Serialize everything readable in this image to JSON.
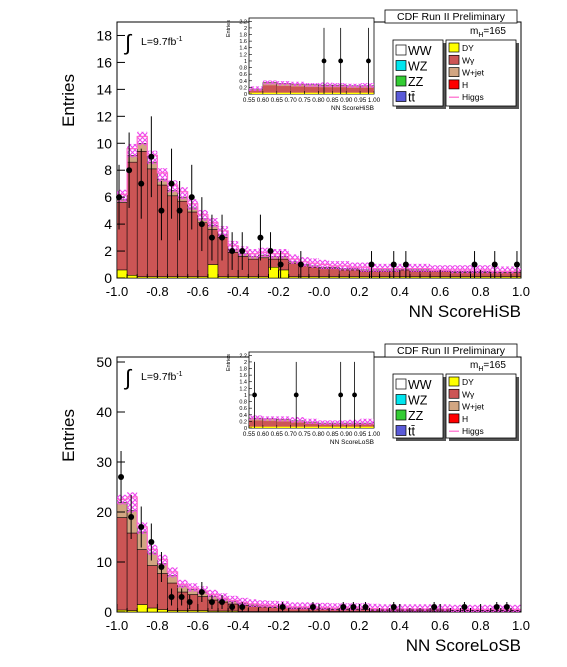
{
  "chart_data": [
    {
      "type": "bar",
      "header": "CDF Run II Preliminary",
      "mass_label": "m",
      "mass_sub": "H",
      "mass_value": "=165",
      "lumi_text": "L=9.7fb",
      "lumi_sup": "-1",
      "xlabel": "NN ScoreHiSB",
      "ylabel": "Entries",
      "xlim": [
        -1.0,
        1.0
      ],
      "ylim": [
        0,
        19
      ],
      "x_ticks": [
        "-1.0",
        "-0.8",
        "-0.6",
        "-0.4",
        "-0.2",
        "-0.0",
        "0.2",
        "0.4",
        "0.6",
        "0.8",
        "1.0"
      ],
      "y_ticks": [
        "0",
        "2",
        "4",
        "6",
        "8",
        "10",
        "12",
        "14",
        "16",
        "18"
      ],
      "bin_edges": [
        -1.0,
        -0.95,
        -0.9,
        -0.85,
        -0.8,
        -0.75,
        -0.7,
        -0.65,
        -0.6,
        -0.55,
        -0.5,
        -0.45,
        -0.4,
        -0.35,
        -0.3,
        -0.25,
        -0.2,
        -0.15,
        -0.1,
        -0.05,
        0.0,
        0.05,
        0.1,
        0.15,
        0.2,
        0.25,
        0.3,
        0.35,
        0.4,
        0.45,
        0.5,
        0.55,
        0.6,
        0.65,
        0.7,
        0.75,
        0.8,
        0.85,
        0.9,
        0.95,
        1.0
      ],
      "series": [
        {
          "name": "DY",
          "color": "#ffff00",
          "values": [
            0.6,
            0.2,
            0.1,
            0.1,
            0.1,
            0.1,
            0.1,
            0.1,
            0.1,
            1.0,
            0.1,
            0.1,
            0.1,
            0.1,
            0.1,
            0.8,
            0.6,
            0.1,
            0.1,
            0.1,
            0.1,
            0.1,
            0.1,
            0.1,
            0.1,
            0.1,
            0.1,
            0.1,
            0.1,
            0.1,
            0.1,
            0.1,
            0.1,
            0.1,
            0.1,
            0.1,
            0.1,
            0.1,
            0.1,
            0.1
          ]
        },
        {
          "name": "Wγ",
          "color": "#cc5555",
          "values": [
            5.0,
            8.4,
            9.3,
            8.0,
            6.8,
            6.0,
            5.6,
            4.8,
            4.0,
            2.6,
            2.9,
            1.8,
            1.5,
            1.3,
            1.4,
            0.6,
            0.8,
            1.0,
            0.8,
            0.7,
            0.6,
            0.6,
            0.5,
            0.5,
            0.4,
            0.4,
            0.4,
            0.4,
            0.5,
            0.4,
            0.4,
            0.4,
            0.4,
            0.3,
            0.3,
            0.3,
            0.3,
            0.3,
            0.3,
            0.3
          ]
        },
        {
          "name": "W+jet",
          "color": "#d2a682",
          "values": [
            0.2,
            0.5,
            0.6,
            0.5,
            0.4,
            0.4,
            0.3,
            0.3,
            0.3,
            0.3,
            0.2,
            0.2,
            0.2,
            0.2,
            0.2,
            0.2,
            0.2,
            0.1,
            0.1,
            0.1,
            0.1,
            0.1,
            0.1,
            0.1,
            0.1,
            0.1,
            0.1,
            0.1,
            0.1,
            0.1,
            0.1,
            0.1,
            0.1,
            0.1,
            0.1,
            0.1,
            0.1,
            0.1,
            0.1,
            0.1
          ]
        }
      ],
      "higgs": [
        6.2,
        9.6,
        10.5,
        9.1,
        7.8,
        6.9,
        6.4,
        5.5,
        4.7,
        4.1,
        3.5,
        2.4,
        2.0,
        1.8,
        1.9,
        1.8,
        1.8,
        1.4,
        1.2,
        1.1,
        1.0,
        0.9,
        0.9,
        0.8,
        0.8,
        0.7,
        0.7,
        0.7,
        0.7,
        0.7,
        0.7,
        0.6,
        0.6,
        0.6,
        0.6,
        0.6,
        0.6,
        0.5,
        0.5,
        0.5
      ],
      "data_points": [
        {
          "x": -0.99,
          "y": 6,
          "err": 2.4
        },
        {
          "x": -0.94,
          "y": 8,
          "err": 2.8
        },
        {
          "x": -0.88,
          "y": 7,
          "err": 2.6
        },
        {
          "x": -0.83,
          "y": 9,
          "err": 3.0
        },
        {
          "x": -0.78,
          "y": 5,
          "err": 2.2
        },
        {
          "x": -0.73,
          "y": 7,
          "err": 2.6
        },
        {
          "x": -0.69,
          "y": 5,
          "err": 2.2
        },
        {
          "x": -0.63,
          "y": 6,
          "err": 2.4
        },
        {
          "x": -0.58,
          "y": 4,
          "err": 2.0
        },
        {
          "x": -0.53,
          "y": 3,
          "err": 1.7
        },
        {
          "x": -0.48,
          "y": 3,
          "err": 1.7
        },
        {
          "x": -0.43,
          "y": 2,
          "err": 1.4
        },
        {
          "x": -0.38,
          "y": 2,
          "err": 1.4
        },
        {
          "x": -0.29,
          "y": 3,
          "err": 1.7
        },
        {
          "x": -0.24,
          "y": 2,
          "err": 1.4
        },
        {
          "x": -0.19,
          "y": 1,
          "err": 1.0
        },
        {
          "x": -0.09,
          "y": 1,
          "err": 1.0
        },
        {
          "x": 0.26,
          "y": 1,
          "err": 1.0
        },
        {
          "x": 0.37,
          "y": 1,
          "err": 1.0
        },
        {
          "x": 0.43,
          "y": 1,
          "err": 1.0
        },
        {
          "x": 0.77,
          "y": 1,
          "err": 1.0
        },
        {
          "x": 0.87,
          "y": 1,
          "err": 1.0
        },
        {
          "x": 0.98,
          "y": 1,
          "err": 1.0
        }
      ],
      "inset": {
        "xlabel": "NN ScoreHiSB",
        "ylabel": "Entries",
        "xlim": [
          0.55,
          1.0
        ],
        "ylim": [
          0,
          2.3
        ],
        "x_ticks": [
          "0.55",
          "0.60",
          "0.65",
          "0.70",
          "0.75",
          "0.80",
          "0.85",
          "0.90",
          "0.95",
          "1.00"
        ],
        "y_ticks": [
          "0",
          "0.2",
          "0.4",
          "0.6",
          "0.8",
          "1",
          "1.2",
          "1.4",
          "1.6",
          "1.8",
          "2",
          "2.2"
        ],
        "bin_edges": [
          0.55,
          0.6,
          0.65,
          0.7,
          0.75,
          0.8,
          0.85,
          0.9,
          0.95,
          1.0
        ],
        "stack": [
          0.15,
          0.35,
          0.32,
          0.3,
          0.28,
          0.27,
          0.27,
          0.25,
          0.25
        ],
        "higgs": [
          0.2,
          0.38,
          0.36,
          0.34,
          0.3,
          0.32,
          0.3,
          0.28,
          0.3
        ],
        "data_points": [
          {
            "x": 0.82,
            "y": 1,
            "err": 1.0
          },
          {
            "x": 0.88,
            "y": 1,
            "err": 1.0
          },
          {
            "x": 0.98,
            "y": 1,
            "err": 1.0
          }
        ]
      },
      "legend": [
        {
          "label": "WW",
          "color": "#ffffff",
          "col": 0
        },
        {
          "label": "WZ",
          "color": "#00e5ee",
          "col": 0
        },
        {
          "label": "ZZ",
          "color": "#33cc33",
          "col": 0
        },
        {
          "label": "tt̄",
          "color": "#5a5ad8",
          "col": 0
        },
        {
          "label": "DY",
          "color": "#ffff00",
          "col": 1
        },
        {
          "label": "Wγ",
          "color": "#cc5555",
          "col": 1
        },
        {
          "label": "W+jet",
          "color": "#d2a682",
          "col": 1
        },
        {
          "label": "H",
          "color": "#ff0000",
          "col": 1
        },
        {
          "label": "Higgs",
          "color": "#ff66cc",
          "col": 1,
          "line": true
        }
      ]
    },
    {
      "type": "bar",
      "header": "CDF Run II Preliminary",
      "mass_label": "m",
      "mass_sub": "H",
      "mass_value": "=165",
      "lumi_text": "L=9.7fb",
      "lumi_sup": "-1",
      "xlabel": "NN ScoreLoSB",
      "ylabel": "Entries",
      "xlim": [
        -1.0,
        1.0
      ],
      "ylim": [
        0,
        51
      ],
      "x_ticks": [
        "-1.0",
        "-0.8",
        "-0.6",
        "-0.4",
        "-0.2",
        "-0.0",
        "0.2",
        "0.4",
        "0.6",
        "0.8",
        "1.0"
      ],
      "y_ticks": [
        "0",
        "10",
        "20",
        "30",
        "40",
        "50"
      ],
      "bin_edges": [
        -1.0,
        -0.95,
        -0.9,
        -0.85,
        -0.8,
        -0.75,
        -0.7,
        -0.65,
        -0.6,
        -0.55,
        -0.5,
        -0.45,
        -0.4,
        -0.35,
        -0.3,
        -0.25,
        -0.2,
        -0.15,
        -0.1,
        -0.05,
        0.0,
        0.05,
        0.1,
        0.15,
        0.2,
        0.25,
        0.3,
        0.35,
        0.4,
        0.45,
        0.5,
        0.55,
        0.6,
        0.65,
        0.7,
        0.75,
        0.8,
        0.85,
        0.9,
        0.95,
        1.0
      ],
      "series": [
        {
          "name": "DY",
          "color": "#ffff00",
          "values": [
            0.4,
            0.3,
            1.5,
            0.8,
            0.5,
            0.3,
            0.3,
            0.3,
            0.3,
            0.2,
            0.2,
            0.2,
            0.1,
            0.1,
            0.1,
            0.1,
            0.1,
            0.1,
            0.1,
            0.1,
            0.1,
            0.1,
            0.1,
            0.1,
            0.1,
            0.1,
            0.1,
            0.1,
            0.1,
            0.1,
            0.1,
            0.1,
            0.1,
            0.1,
            0.1,
            0.1,
            0.1,
            0.1,
            0.1,
            0.1
          ]
        },
        {
          "name": "Wγ",
          "color": "#cc5555",
          "values": [
            18.5,
            15.5,
            11.0,
            8.5,
            7.2,
            5.5,
            3.7,
            3.2,
            2.8,
            2.2,
            1.8,
            1.4,
            1.2,
            1.0,
            0.9,
            0.8,
            0.7,
            0.6,
            0.6,
            0.5,
            0.5,
            0.4,
            0.4,
            0.4,
            0.4,
            0.3,
            0.3,
            0.3,
            0.3,
            0.3,
            0.3,
            0.3,
            0.3,
            0.2,
            0.2,
            0.2,
            0.2,
            0.2,
            0.2,
            0.2
          ]
        },
        {
          "name": "W+jet",
          "color": "#d2a682",
          "values": [
            3.0,
            4.5,
            3.5,
            2.5,
            2.0,
            1.5,
            1.2,
            1.0,
            0.9,
            0.7,
            0.6,
            0.5,
            0.4,
            0.3,
            0.3,
            0.3,
            0.3,
            0.2,
            0.2,
            0.2,
            0.2,
            0.2,
            0.2,
            0.2,
            0.2,
            0.2,
            0.1,
            0.1,
            0.1,
            0.1,
            0.1,
            0.1,
            0.1,
            0.1,
            0.1,
            0.1,
            0.1,
            0.1,
            0.1,
            0.1
          ]
        }
      ],
      "higgs": [
        22.5,
        23.0,
        17.0,
        12.5,
        10.5,
        8.0,
        5.5,
        4.8,
        4.2,
        3.5,
        2.8,
        2.3,
        1.9,
        1.6,
        1.4,
        1.3,
        1.2,
        1.0,
        1.0,
        0.9,
        0.9,
        0.8,
        0.8,
        0.8,
        0.8,
        0.7,
        0.6,
        0.6,
        0.6,
        0.6,
        0.6,
        0.6,
        0.6,
        0.5,
        0.5,
        0.5,
        0.5,
        0.5,
        0.5,
        0.5
      ],
      "data_points": [
        {
          "x": -0.98,
          "y": 27,
          "err": 5.2
        },
        {
          "x": -0.93,
          "y": 19,
          "err": 4.4
        },
        {
          "x": -0.88,
          "y": 17,
          "err": 4.1
        },
        {
          "x": -0.83,
          "y": 14,
          "err": 3.7
        },
        {
          "x": -0.78,
          "y": 9,
          "err": 3.0
        },
        {
          "x": -0.73,
          "y": 3,
          "err": 1.7
        },
        {
          "x": -0.68,
          "y": 3,
          "err": 1.7
        },
        {
          "x": -0.64,
          "y": 2,
          "err": 1.4
        },
        {
          "x": -0.58,
          "y": 4,
          "err": 2.0
        },
        {
          "x": -0.53,
          "y": 2,
          "err": 1.4
        },
        {
          "x": -0.48,
          "y": 2,
          "err": 1.4
        },
        {
          "x": -0.43,
          "y": 1,
          "err": 1.0
        },
        {
          "x": -0.38,
          "y": 1,
          "err": 1.0
        },
        {
          "x": -0.18,
          "y": 1,
          "err": 1.0
        },
        {
          "x": -0.03,
          "y": 1,
          "err": 1.0
        },
        {
          "x": 0.12,
          "y": 1,
          "err": 1.0
        },
        {
          "x": 0.17,
          "y": 1,
          "err": 1.0
        },
        {
          "x": 0.23,
          "y": 1,
          "err": 1.0
        },
        {
          "x": 0.37,
          "y": 1,
          "err": 1.0
        },
        {
          "x": 0.57,
          "y": 1,
          "err": 1.0
        },
        {
          "x": 0.72,
          "y": 1,
          "err": 1.0
        },
        {
          "x": 0.88,
          "y": 1,
          "err": 1.0
        },
        {
          "x": 0.93,
          "y": 1,
          "err": 1.0
        }
      ],
      "inset": {
        "xlabel": "NN ScoreLoSB",
        "ylabel": "Entries",
        "xlim": [
          0.55,
          1.0
        ],
        "ylim": [
          0,
          2.3
        ],
        "x_ticks": [
          "0.55",
          "0.60",
          "0.65",
          "0.70",
          "0.75",
          "0.80",
          "0.85",
          "0.90",
          "0.95",
          "1.00"
        ],
        "y_ticks": [
          "0",
          "0.2",
          "0.4",
          "0.6",
          "0.8",
          "1",
          "1.2",
          "1.4",
          "1.6",
          "1.8",
          "2",
          "2.2"
        ],
        "bin_edges": [
          0.55,
          0.6,
          0.65,
          0.7,
          0.75,
          0.8,
          0.85,
          0.9,
          0.95,
          1.0
        ],
        "stack": [
          0.3,
          0.28,
          0.26,
          0.22,
          0.18,
          0.15,
          0.15,
          0.15,
          0.15
        ],
        "higgs": [
          0.35,
          0.32,
          0.32,
          0.3,
          0.25,
          0.2,
          0.2,
          0.22,
          0.25
        ],
        "data_points": [
          {
            "x": 0.57,
            "y": 1,
            "err": 1.0
          },
          {
            "x": 0.72,
            "y": 1,
            "err": 1.0
          },
          {
            "x": 0.88,
            "y": 1,
            "err": 1.0
          },
          {
            "x": 0.93,
            "y": 1,
            "err": 1.0
          }
        ]
      },
      "legend": [
        {
          "label": "WW",
          "color": "#ffffff",
          "col": 0
        },
        {
          "label": "WZ",
          "color": "#00e5ee",
          "col": 0
        },
        {
          "label": "ZZ",
          "color": "#33cc33",
          "col": 0
        },
        {
          "label": "tt̄",
          "color": "#5a5ad8",
          "col": 0
        },
        {
          "label": "DY",
          "color": "#ffff00",
          "col": 1
        },
        {
          "label": "Wγ",
          "color": "#cc5555",
          "col": 1
        },
        {
          "label": "W+jet",
          "color": "#d2a682",
          "col": 1
        },
        {
          "label": "H",
          "color": "#ff0000",
          "col": 1
        },
        {
          "label": "Higgs",
          "color": "#ff66cc",
          "col": 1,
          "line": true
        }
      ]
    }
  ]
}
